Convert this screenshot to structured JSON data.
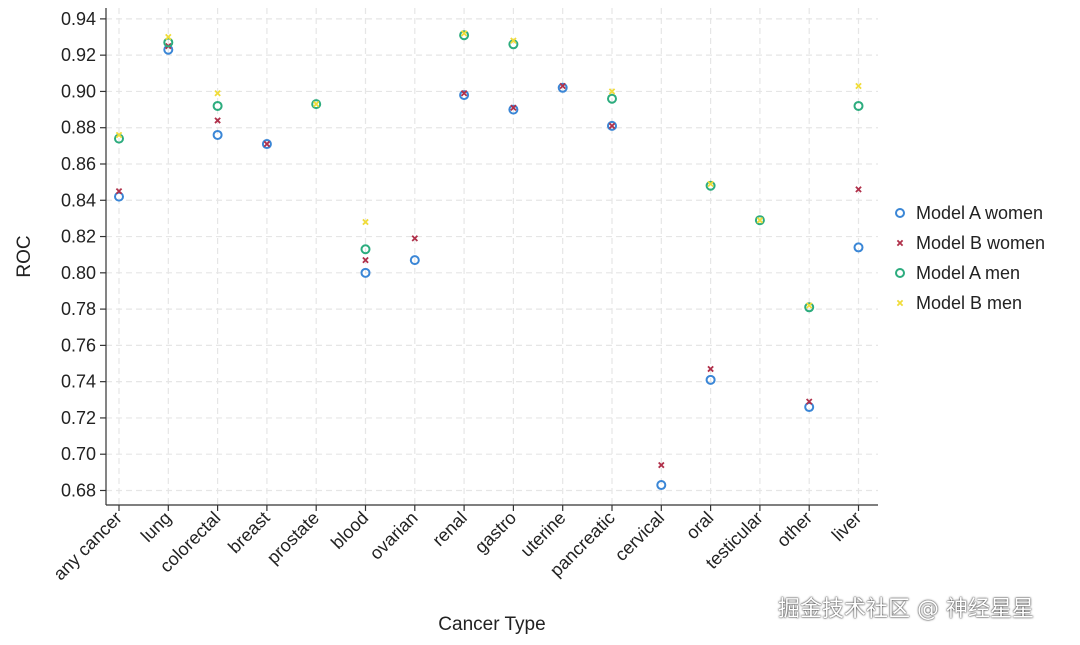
{
  "chart_data": {
    "type": "scatter",
    "title": "",
    "xlabel": "Cancer Type",
    "ylabel": "ROC",
    "ylim": [
      0.672,
      0.946
    ],
    "yticks": [
      "0.68",
      "0.70",
      "0.72",
      "0.74",
      "0.76",
      "0.78",
      "0.80",
      "0.82",
      "0.84",
      "0.86",
      "0.88",
      "0.90",
      "0.92",
      "0.94"
    ],
    "grid": true,
    "legend_position": "right",
    "categories": [
      "any cancer",
      "lung",
      "colorectal",
      "breast",
      "prostate",
      "blood",
      "ovarian",
      "renal",
      "gastro",
      "uterine",
      "pancreatic",
      "cervical",
      "oral",
      "testicular",
      "other",
      "liver"
    ],
    "series": [
      {
        "name": "Model A women",
        "marker": "circle",
        "color": "#3a86d6",
        "values": [
          0.842,
          0.923,
          0.876,
          0.871,
          null,
          0.8,
          0.807,
          0.898,
          0.89,
          0.902,
          0.881,
          0.683,
          0.741,
          null,
          0.726,
          0.814
        ]
      },
      {
        "name": "Model B women",
        "marker": "x",
        "color": "#b0304a",
        "values": [
          0.845,
          0.925,
          0.884,
          0.871,
          null,
          0.807,
          0.819,
          0.899,
          0.891,
          0.903,
          0.881,
          0.694,
          0.747,
          null,
          0.729,
          0.846
        ]
      },
      {
        "name": "Model A men",
        "marker": "circle",
        "color": "#2cac7e",
        "values": [
          0.874,
          0.927,
          0.892,
          null,
          0.893,
          0.813,
          null,
          0.931,
          0.926,
          null,
          0.896,
          null,
          0.848,
          0.829,
          0.781,
          0.892
        ]
      },
      {
        "name": "Model B men",
        "marker": "x",
        "color": "#f0dc3a",
        "values": [
          0.876,
          0.93,
          0.899,
          null,
          0.893,
          0.828,
          null,
          0.932,
          0.928,
          null,
          0.9,
          null,
          0.849,
          0.829,
          0.782,
          0.903
        ]
      }
    ]
  },
  "watermark": "掘金技术社区 @ 神经星星"
}
